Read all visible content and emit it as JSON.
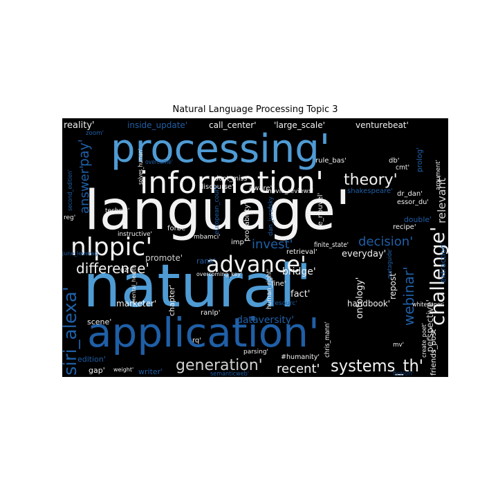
{
  "title": "Natural Language Processing Topic 3",
  "colors": {
    "background": "#000000",
    "white": "#f2f2f2",
    "light_gray": "#d0d0d0",
    "mid_blue": "#4f9bd4",
    "dark_blue": "#1f5fa6",
    "navy": "#0d3e7a"
  },
  "words": [
    {
      "text": "language'",
      "color": "white"
    },
    {
      "text": "natural'",
      "color": "mid_blue"
    },
    {
      "text": "processing'",
      "color": "mid_blue"
    },
    {
      "text": "application'",
      "color": "dark_blue"
    },
    {
      "text": "information'",
      "color": "white"
    },
    {
      "text": "advance'",
      "color": "white"
    },
    {
      "text": "nlppic'",
      "color": "white"
    },
    {
      "text": "siri_alexa'",
      "color": "dark_blue"
    },
    {
      "text": "challenge'",
      "color": "white"
    },
    {
      "text": "systems_th'",
      "color": "white"
    },
    {
      "text": "generation'",
      "color": "light_gray"
    },
    {
      "text": "webinar'",
      "color": "dark_blue"
    },
    {
      "text": "theory'",
      "color": "white"
    },
    {
      "text": "answer'",
      "color": "dark_blue"
    },
    {
      "text": "pay'",
      "color": "dark_blue"
    },
    {
      "text": "difference'",
      "color": "white"
    },
    {
      "text": "invest'",
      "color": "dark_blue"
    },
    {
      "text": "decision'",
      "color": "dark_blue"
    },
    {
      "text": "relevant'",
      "color": "light_gray"
    },
    {
      "text": "recent'",
      "color": "white"
    },
    {
      "text": "dataversity'",
      "color": "dark_blue"
    },
    {
      "text": "reality'",
      "color": "white"
    },
    {
      "text": "inside_update'",
      "color": "dark_blue"
    },
    {
      "text": "call_center'",
      "color": "white"
    },
    {
      "text": "'large_scale'",
      "color": "white"
    },
    {
      "text": "venturebeat'",
      "color": "white"
    },
    {
      "text": "everyday'",
      "color": "white"
    },
    {
      "text": "promote'",
      "color": "light_gray"
    },
    {
      "text": "rank'",
      "color": "dark_blue"
    },
    {
      "text": "ontology'",
      "color": "white"
    },
    {
      "text": "fact'",
      "color": "white"
    },
    {
      "text": "handbook'",
      "color": "white"
    },
    {
      "text": "marketer'",
      "color": "white"
    },
    {
      "text": "bridge'",
      "color": "white"
    },
    {
      "text": "perspective'",
      "color": "light_gray"
    },
    {
      "text": "repost'",
      "color": "white"
    },
    {
      "text": "extraction'",
      "color": "dark_blue"
    },
    {
      "text": "friends_post'",
      "color": "white"
    },
    {
      "text": "scene'",
      "color": "white"
    },
    {
      "text": "edition'",
      "color": "dark_blue"
    },
    {
      "text": "gap'",
      "color": "white"
    },
    {
      "text": "writer'",
      "color": "dark_blue"
    },
    {
      "text": "chapter'",
      "color": "white"
    },
    {
      "text": "forbe'",
      "color": "white"
    },
    {
      "text": "mbamci'",
      "color": "white"
    },
    {
      "text": "discourse'",
      "color": "white"
    },
    {
      "text": "aware'",
      "color": "white"
    },
    {
      "text": "dont_miss'",
      "color": "white"
    },
    {
      "text": "rule_bas'",
      "color": "white"
    },
    {
      "text": "db'",
      "color": "white"
    },
    {
      "text": "cmt'",
      "color": "white"
    },
    {
      "text": "prolog'",
      "color": "dark_blue"
    },
    {
      "text": "shakespeare'",
      "color": "dark_blue"
    },
    {
      "text": "dr_dan'",
      "color": "white"
    },
    {
      "text": "essor_du'",
      "color": "white"
    },
    {
      "text": "le_nouvel'",
      "color": "white"
    },
    {
      "text": "dan_jurafsky",
      "color": "dark_blue"
    },
    {
      "text": "movie_reviews'",
      "color": "white"
    },
    {
      "text": "probability'",
      "color": "white"
    },
    {
      "text": "european_court'",
      "color": "dark_blue"
    },
    {
      "text": "imp'",
      "color": "white"
    },
    {
      "text": "retrieval'",
      "color": "white"
    },
    {
      "text": "finite_state'",
      "color": "white"
    },
    {
      "text": "double'",
      "color": "dark_blue"
    },
    {
      "text": "recipe'",
      "color": "white"
    },
    {
      "text": "second_edition'",
      "color": "dark_blue"
    },
    {
      "text": "reg'",
      "color": "white"
    },
    {
      "text": "technic'",
      "color": "white"
    },
    {
      "text": "instructive'",
      "color": "white"
    },
    {
      "text": "june_leverag",
      "color": "dark_blue"
    },
    {
      "text": "qz'",
      "color": "white"
    },
    {
      "text": "overcoming_key'",
      "color": "white"
    },
    {
      "text": "human_right'",
      "color": "white"
    },
    {
      "text": "fine'",
      "color": "white"
    },
    {
      "text": "resourc'",
      "color": "dark_blue"
    },
    {
      "text": "ranlp'",
      "color": "white"
    },
    {
      "text": "rq'",
      "color": "white"
    },
    {
      "text": "parsing'",
      "color": "white"
    },
    {
      "text": "weight'",
      "color": "white"
    },
    {
      "text": "semanticweb'",
      "color": "dark_blue"
    },
    {
      "text": "#humanity'",
      "color": "white"
    },
    {
      "text": "chris_mann'",
      "color": "white"
    },
    {
      "text": "create_poet'",
      "color": "white"
    },
    {
      "text": "whitepaper'",
      "color": "white"
    },
    {
      "text": "mental_health",
      "color": "white"
    },
    {
      "text": "solves_human'",
      "color": "white"
    },
    {
      "text": "zoom'",
      "color": "dark_blue"
    },
    {
      "text": "overcome'",
      "color": "dark_blue"
    },
    {
      "text": "argument'",
      "color": "white"
    },
    {
      "text": "mv'",
      "color": "white"
    },
    {
      "text": "metaguide'",
      "color": "dark_blue"
    },
    {
      "text": "fiction'",
      "color": "navy"
    }
  ]
}
